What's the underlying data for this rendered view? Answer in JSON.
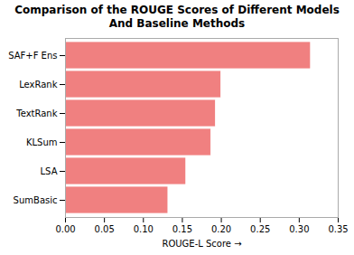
{
  "chart_data": {
    "type": "bar",
    "orientation": "horizontal",
    "title": "Comparison of the ROUGE Scores of Different Models\nAnd Baseline Methods",
    "categories": [
      "SumBasic",
      "LSA",
      "KLSum",
      "TextRank",
      "LexRank",
      "SAF+F Ens"
    ],
    "values": [
      0.132,
      0.155,
      0.187,
      0.193,
      0.2,
      0.315
    ],
    "color": "#F08080",
    "xlabel": "ROUGE-L Score",
    "xlim": [
      0.0,
      0.35
    ],
    "xticks": [
      {
        "value": 0,
        "label": "0.00"
      },
      0.05,
      {
        "value": 0.1,
        "label": "0.10"
      },
      0.15,
      {
        "value": 0.2,
        "label": "0.20"
      },
      0.25,
      {
        "value": 0.3,
        "label": "0.30"
      },
      0.35
    ]
  }
}
